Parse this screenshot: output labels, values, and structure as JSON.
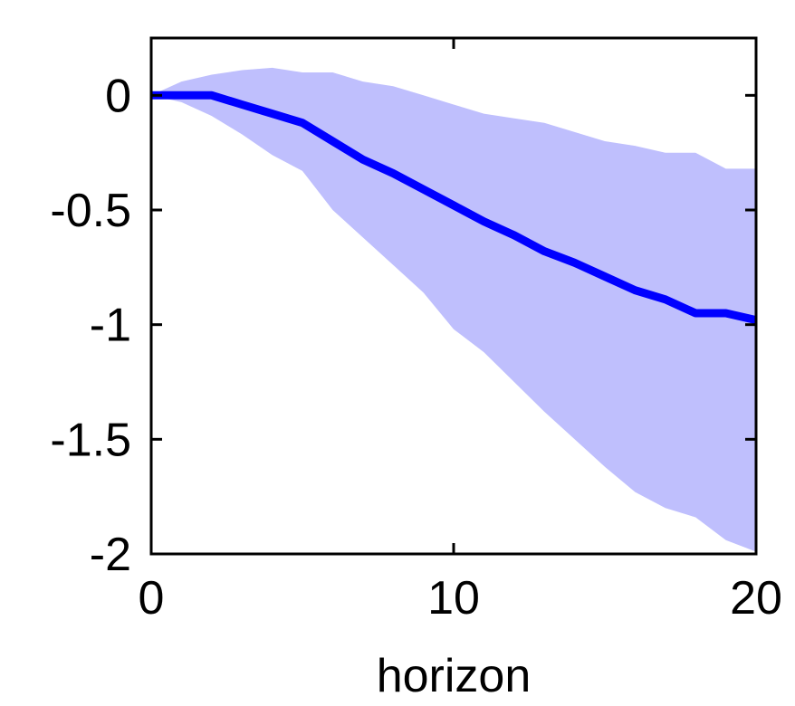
{
  "chart_data": {
    "type": "line",
    "title": "",
    "xlabel": "horizon",
    "ylabel": "",
    "xlim": [
      0,
      20
    ],
    "ylim": [
      -2,
      0.25
    ],
    "xticks": [
      0,
      10,
      20
    ],
    "xtick_labels": [
      "0",
      "10",
      "20"
    ],
    "yticks": [
      0,
      -0.5,
      -1,
      -1.5,
      -2
    ],
    "ytick_labels": [
      "0",
      "-0.5",
      "-1",
      "-1.5",
      "-2"
    ],
    "grid": false,
    "legend": "none",
    "series": [
      {
        "x": [
          0,
          1,
          2,
          3,
          4,
          5,
          6,
          7,
          8,
          9,
          10,
          11,
          12,
          13,
          14,
          15,
          16,
          17,
          18,
          19,
          20
        ],
        "values": [
          0,
          0,
          0,
          -0.04,
          -0.08,
          -0.12,
          -0.2,
          -0.28,
          -0.34,
          -0.41,
          -0.48,
          -0.55,
          -0.61,
          -0.68,
          -0.73,
          -0.79,
          -0.85,
          -0.89,
          -0.95,
          -0.95,
          -0.98
        ],
        "lower": [
          0,
          -0.03,
          -0.09,
          -0.17,
          -0.26,
          -0.33,
          -0.5,
          -0.62,
          -0.74,
          -0.86,
          -1.02,
          -1.12,
          -1.25,
          -1.38,
          -1.5,
          -1.62,
          -1.73,
          -1.8,
          -1.84,
          -1.94,
          -1.99
        ],
        "upper": [
          0,
          0.06,
          0.09,
          0.11,
          0.12,
          0.1,
          0.1,
          0.06,
          0.04,
          0.0,
          -0.04,
          -0.08,
          -0.1,
          -0.12,
          -0.16,
          -0.2,
          -0.22,
          -0.25,
          -0.25,
          -0.32,
          -0.32
        ],
        "color": "#0000ff",
        "band_color": "#bfbffd"
      }
    ]
  }
}
